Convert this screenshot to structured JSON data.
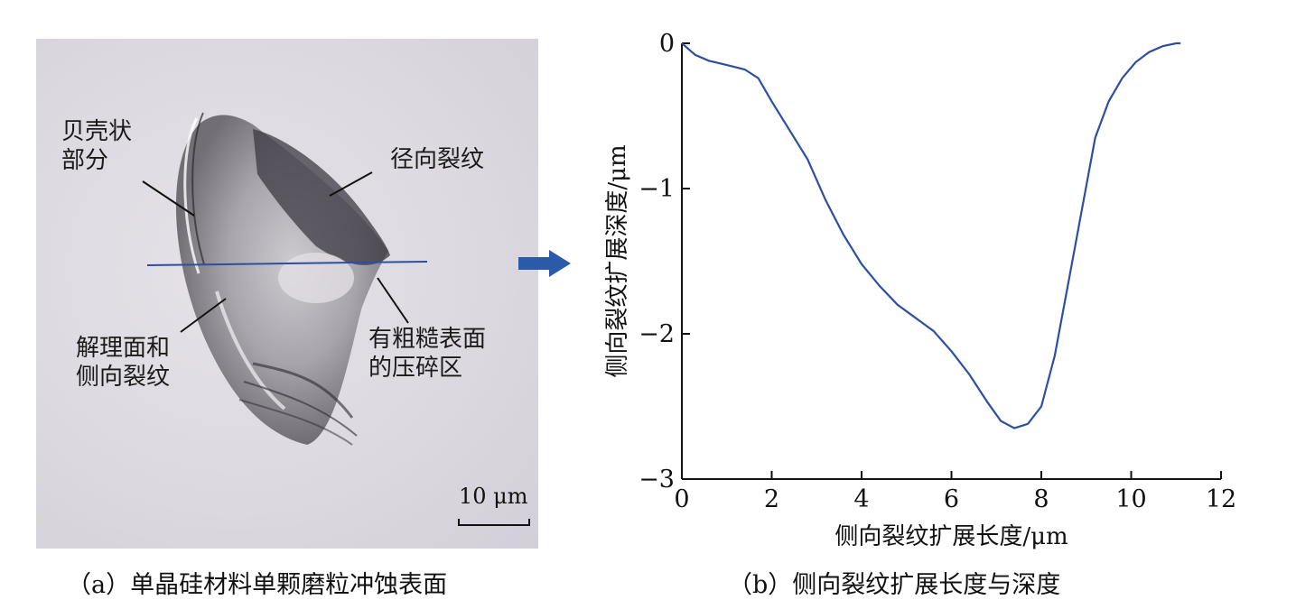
{
  "panel_a": {
    "annotations": {
      "shell": "贝壳状\n部分",
      "radial_crack": "径向裂纹",
      "cleavage": "解理面和\n侧向裂纹",
      "crushed": "有粗糙表面\n的压碎区"
    },
    "scale_bar": "10 μm",
    "caption": "（a）单晶硅材料单颗磨粒冲蚀表面"
  },
  "arrow_icon": "right-arrow-icon",
  "arrow_color": "#2a5aa8",
  "line_color": "#2d4fa0",
  "chart_data": {
    "type": "line",
    "xlabel": "侧向裂纹扩展长度/μm",
    "ylabel": "侧向裂纹扩展深度/μm",
    "xlim": [
      0,
      12
    ],
    "ylim": [
      -3,
      0
    ],
    "xticks": [
      0,
      2,
      4,
      6,
      8,
      10,
      12
    ],
    "yticks": [
      0,
      -1,
      -2,
      -3
    ],
    "grid": false,
    "series": [
      {
        "x": [
          0,
          0.3,
          0.6,
          1.0,
          1.4,
          1.7,
          2.0,
          2.4,
          2.8,
          3.2,
          3.6,
          4.0,
          4.4,
          4.8,
          5.2,
          5.6,
          6.0,
          6.4,
          6.8,
          7.1,
          7.4,
          7.7,
          8.0,
          8.3,
          8.6,
          8.9,
          9.2,
          9.5,
          9.8,
          10.1,
          10.4,
          10.7,
          11.0,
          11.1
        ],
        "y": [
          0,
          -0.08,
          -0.12,
          -0.15,
          -0.18,
          -0.24,
          -0.4,
          -0.6,
          -0.8,
          -1.08,
          -1.32,
          -1.52,
          -1.67,
          -1.8,
          -1.89,
          -1.98,
          -2.12,
          -2.28,
          -2.47,
          -2.6,
          -2.65,
          -2.62,
          -2.5,
          -2.15,
          -1.65,
          -1.15,
          -0.65,
          -0.4,
          -0.24,
          -0.13,
          -0.06,
          -0.02,
          0,
          0
        ]
      }
    ],
    "caption": "（b）侧向裂纹扩展长度与深度"
  }
}
